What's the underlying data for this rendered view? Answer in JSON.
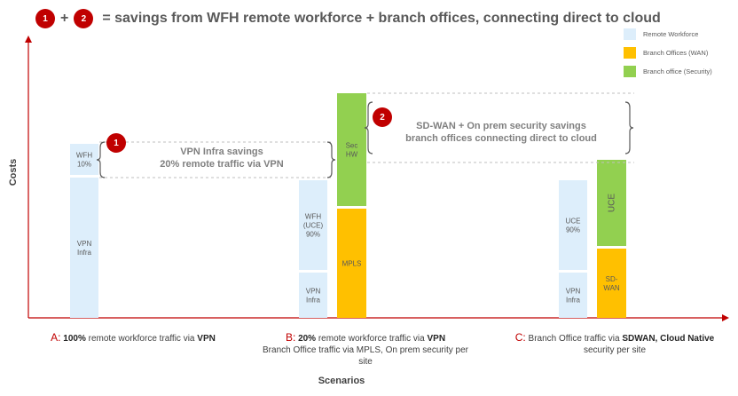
{
  "header": {
    "badge1": "1",
    "plus": "+",
    "badge2": "2",
    "title": "= savings from WFH remote workforce + branch offices, connecting direct to cloud"
  },
  "chart_data": {
    "type": "bar",
    "stacked": true,
    "ylabel": "Costs",
    "xlabel": "Scenarios",
    "categories": [
      "A",
      "B",
      "C"
    ],
    "series": [
      {
        "name": "Remote Workforce",
        "color": "#ddeefb"
      },
      {
        "name": "Branch Offices (WAN)",
        "color": "#ffc000"
      },
      {
        "name": "Branch office (Security)",
        "color": "#92d050"
      }
    ],
    "stacks": [
      {
        "category": "A",
        "column": "remote",
        "segments": [
          {
            "series": "Remote Workforce",
            "label": "VPN\nInfra",
            "value": 158
          },
          {
            "series": "Remote Workforce",
            "label": "WFH\n10%",
            "value": 35
          }
        ]
      },
      {
        "category": "B",
        "column": "remote",
        "segments": [
          {
            "series": "Remote Workforce",
            "label": "VPN\nInfra",
            "value": 51
          },
          {
            "series": "Remote Workforce",
            "label": "WFH\n(UCE)\n90%",
            "value": 101
          }
        ]
      },
      {
        "category": "B",
        "column": "branch",
        "segments": [
          {
            "series": "Branch Offices (WAN)",
            "label": "MPLS",
            "value": 123
          },
          {
            "series": "Branch office (Security)",
            "label": "Sec\nHW",
            "value": 127
          }
        ]
      },
      {
        "category": "C",
        "column": "remote",
        "segments": [
          {
            "series": "Remote Workforce",
            "label": "VPN\nInfra",
            "value": 51
          },
          {
            "series": "Remote Workforce",
            "label": "UCE\n90%",
            "value": 101
          }
        ]
      },
      {
        "category": "C",
        "column": "branch",
        "segments": [
          {
            "series": "Branch Offices (WAN)",
            "label": "SD-\nWAN",
            "value": 78
          },
          {
            "series": "Branch office (Security)",
            "label": "UCE",
            "value": 97
          }
        ]
      }
    ]
  },
  "annotations": {
    "savings1": {
      "badge": "1",
      "line1": "VPN Infra savings",
      "line2": "20% remote traffic via VPN"
    },
    "savings2": {
      "badge": "2",
      "line1": "SD-WAN + On prem security savings",
      "line2": "branch offices connecting direct to cloud"
    }
  },
  "scenarios": {
    "a": {
      "letter": "A:",
      "bold1": "100%",
      "text1": " remote workforce traffic via ",
      "bold2": "VPN"
    },
    "b": {
      "letter": "B:",
      "bold1": "20%",
      "text1": " remote workforce traffic via ",
      "bold2": "VPN",
      "line2": "Branch Office traffic via MPLS, On prem security per",
      "line3": "site"
    },
    "c": {
      "letter": "C:",
      "text1": " Branch Office traffic via ",
      "bold1": "SDWAN, Cloud Native",
      "line2": "security per site"
    }
  },
  "colors": {
    "axis": "#c00000",
    "badge": "#c00000",
    "dashed": "#bfbfbf",
    "brace": "#595959"
  }
}
